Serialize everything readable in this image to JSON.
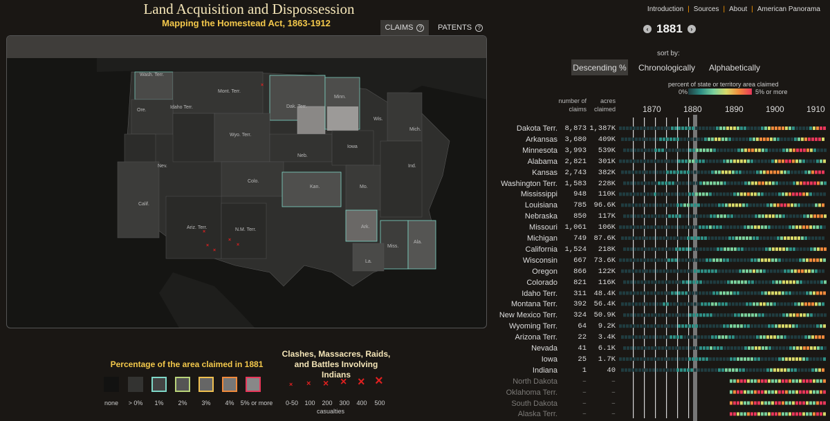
{
  "header": {
    "title": "Land Acquisition and Dispossession",
    "subtitle": "Mapping the Homestead Act, 1863-1912"
  },
  "tabs": [
    {
      "label": "CLAIMS",
      "help": "?"
    },
    {
      "label": "PATENTS",
      "help": "?"
    }
  ],
  "topnav": [
    "Introduction",
    "Sources",
    "About",
    "American Panorama"
  ],
  "year": "1881",
  "year_prev": "‹",
  "year_next": "›",
  "sort": {
    "caption": "sort by:",
    "options": [
      "Descending %",
      "Chronologically",
      "Alphabetically"
    ],
    "selected": "Descending %"
  },
  "gradient": {
    "caption": "percent of state or territory area claimed",
    "min_label": "0%",
    "max_label": "5% or more",
    "colors": [
      "#203c40",
      "#2e8f85",
      "#7ad19d",
      "#d8d96a",
      "#f08a3c",
      "#e8375a"
    ]
  },
  "columns": {
    "claims": "number of claims",
    "acres": "acres claimed"
  },
  "axis": [
    "1870",
    "1880",
    "1890",
    "1900",
    "1910"
  ],
  "area_legend": {
    "title": "Percentage of the area claimed in 1881",
    "items": [
      "none",
      "> 0%",
      "1%",
      "2%",
      "3%",
      "4%",
      "5% or more"
    ]
  },
  "clash_legend": {
    "title": "Clashes, Massacres, Raids, and Battles Involving Indians",
    "items": [
      "0-50",
      "100",
      "200",
      "300",
      "400",
      "500"
    ],
    "unit": "casualties"
  },
  "map_labels": [
    "Wash. Terr.",
    "Mont. Terr.",
    "Ore.",
    "Idaho Terr.",
    "Wyo. Terr.",
    "Dak. Terr.",
    "Minn.",
    "Wis.",
    "Mich.",
    "Iowa",
    "Neb.",
    "Nev.",
    "Calif.",
    "Colo.",
    "Kan.",
    "Ind.",
    "Mo.",
    "Ariz. Terr.",
    "N.M. Terr.",
    "Ark.",
    "Miss.",
    "Ala.",
    "La."
  ],
  "rows": [
    {
      "name": "Dakota Terr.",
      "claims": "8,873",
      "acres": "1,387K"
    },
    {
      "name": "Arkansas",
      "claims": "3,680",
      "acres": "409K"
    },
    {
      "name": "Minnesota",
      "claims": "3,993",
      "acres": "539K"
    },
    {
      "name": "Alabama",
      "claims": "2,821",
      "acres": "301K"
    },
    {
      "name": "Kansas",
      "claims": "2,743",
      "acres": "382K"
    },
    {
      "name": "Washington Terr.",
      "claims": "1,583",
      "acres": "228K"
    },
    {
      "name": "Mississippi",
      "claims": "948",
      "acres": "110K"
    },
    {
      "name": "Louisiana",
      "claims": "785",
      "acres": "96.6K"
    },
    {
      "name": "Nebraska",
      "claims": "850",
      "acres": "117K"
    },
    {
      "name": "Missouri",
      "claims": "1,061",
      "acres": "106K"
    },
    {
      "name": "Michigan",
      "claims": "749",
      "acres": "87.6K"
    },
    {
      "name": "California",
      "claims": "1,524",
      "acres": "218K"
    },
    {
      "name": "Wisconsin",
      "claims": "667",
      "acres": "73.6K"
    },
    {
      "name": "Oregon",
      "claims": "866",
      "acres": "122K"
    },
    {
      "name": "Colorado",
      "claims": "821",
      "acres": "116K"
    },
    {
      "name": "Idaho Terr.",
      "claims": "311",
      "acres": "48.4K"
    },
    {
      "name": "Montana Terr.",
      "claims": "392",
      "acres": "56.4K"
    },
    {
      "name": "New Mexico Terr.",
      "claims": "324",
      "acres": "50.9K"
    },
    {
      "name": "Wyoming Terr.",
      "claims": "64",
      "acres": "9.2K"
    },
    {
      "name": "Arizona Terr.",
      "claims": "22",
      "acres": "3.4K"
    },
    {
      "name": "Nevada",
      "claims": "41",
      "acres": "6.1K"
    },
    {
      "name": "Iowa",
      "claims": "25",
      "acres": "1.7K"
    },
    {
      "name": "Indiana",
      "claims": "1",
      "acres": "40"
    },
    {
      "name": "North Dakota",
      "claims": "–",
      "acres": "–"
    },
    {
      "name": "Oklahoma Terr.",
      "claims": "–",
      "acres": "–"
    },
    {
      "name": "South Dakota",
      "claims": "–",
      "acres": "–"
    },
    {
      "name": "Alaska Terr.",
      "claims": "–",
      "acres": "–"
    }
  ]
}
